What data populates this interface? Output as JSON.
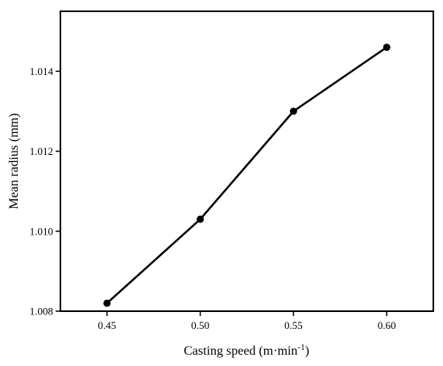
{
  "chart_data": {
    "type": "line",
    "title": "",
    "xlabel": {
      "main": "Casting speed (m·min",
      "sup": "-1",
      "close": ")"
    },
    "ylabel": "Mean radius (mm)",
    "x": [
      0.45,
      0.5,
      0.55,
      0.6
    ],
    "series": [
      {
        "values": [
          1.0082,
          1.0103,
          1.013,
          1.0146
        ]
      }
    ],
    "xlim": [
      0.425,
      0.625
    ],
    "ylim": [
      1.008,
      1.0155
    ],
    "xticks": [
      "0.45",
      "0.50",
      "0.55",
      "0.60"
    ],
    "yticks": [
      "1.008",
      "1.010",
      "1.012",
      "1.014"
    ],
    "grid": false,
    "legend": "none",
    "colors": {
      "line": "#000000",
      "marker": "#000000",
      "axis": "#000000"
    }
  }
}
